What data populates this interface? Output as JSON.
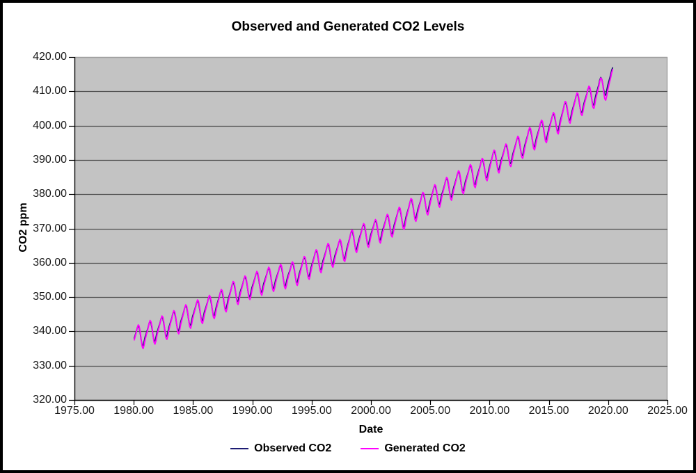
{
  "window": {
    "background_color": "#ffffff",
    "frame_color": "#000000"
  },
  "chart_data": {
    "type": "line",
    "title": "Observed and Generated CO2 Levels",
    "xlabel": "Date",
    "ylabel": "CO2 ppm",
    "xlim": [
      1975,
      2025
    ],
    "ylim": [
      320,
      420
    ],
    "x_ticks": [
      1975,
      1980,
      1985,
      1990,
      1995,
      2000,
      2005,
      2010,
      2015,
      2020,
      2025
    ],
    "y_ticks": [
      320,
      330,
      340,
      350,
      360,
      370,
      380,
      390,
      400,
      410,
      420
    ],
    "tick_decimals": 2,
    "grid": "horizontal",
    "legend_position": "bottom-center",
    "plot_bg_color": "#c3c3c3",
    "gridline_color": "#4f4f4f",
    "plot_border_color": "#9e9e9e",
    "axis_color": "#000000",
    "sampling": {
      "start_year": 1980.0,
      "end_x": 2020.42,
      "points_per_year": 12
    },
    "seasonal_offsets_ppm": [
      -0.2,
      0.6,
      1.4,
      2.5,
      3.0,
      2.3,
      0.7,
      -1.4,
      -3.1,
      -3.3,
      -2.2,
      -1.0
    ],
    "series": [
      {
        "name": "Observed CO2",
        "color": "#1d1c73",
        "line_width": 1.8,
        "amplitude_scale": 1.0,
        "level_offset": 0,
        "phase_shift": 0,
        "annual_means_start_year": 1980,
        "annual_means": [
          338.8,
          340.1,
          341.4,
          343.0,
          344.7,
          346.1,
          347.4,
          349.2,
          351.6,
          353.1,
          354.4,
          355.6,
          356.4,
          357.1,
          358.8,
          360.8,
          362.6,
          363.7,
          366.7,
          368.4,
          369.5,
          371.1,
          373.2,
          375.8,
          377.5,
          379.8,
          381.9,
          383.8,
          385.6,
          387.4,
          389.9,
          391.6,
          393.9,
          396.5,
          398.6,
          400.8,
          404.2,
          406.6,
          408.5,
          411.4,
          414.2
        ]
      },
      {
        "name": "Generated CO2",
        "color": "#ff00ff",
        "line_width": 1.8,
        "amplitude_scale": 1.22,
        "level_offset": -0.25,
        "phase_shift": -0.02,
        "annual_means_start_year": 1980,
        "annual_means": [
          338.8,
          340.1,
          341.4,
          343.0,
          344.7,
          346.1,
          347.4,
          349.2,
          351.6,
          353.1,
          354.4,
          355.6,
          356.4,
          357.1,
          358.8,
          360.8,
          362.6,
          363.7,
          366.7,
          368.4,
          369.5,
          371.1,
          373.2,
          375.8,
          377.5,
          379.8,
          381.9,
          383.8,
          385.6,
          387.4,
          389.9,
          391.6,
          393.9,
          396.5,
          398.6,
          400.8,
          404.2,
          406.6,
          408.5,
          410.9,
          413.4
        ]
      }
    ]
  }
}
